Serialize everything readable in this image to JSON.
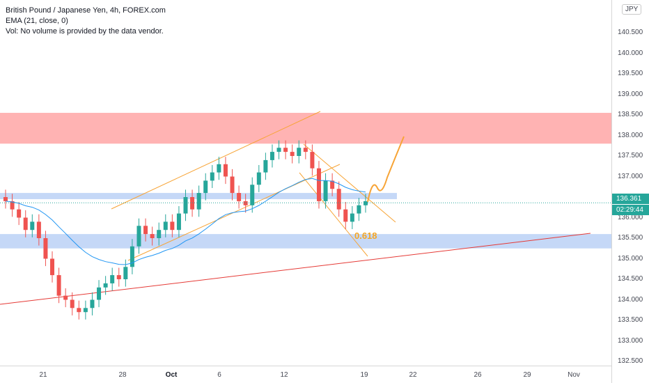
{
  "legend": {
    "title": "British Pound / Japanese Yen, 4h, FOREX.com",
    "ema": "EMA (21, close, 0)",
    "vol": "Vol: No volume is provided by the data vendor."
  },
  "currency_label": "JPY",
  "price_ticks": [
    "140.500",
    "140.000",
    "139.500",
    "139.000",
    "138.500",
    "138.000",
    "137.500",
    "137.000",
    "136.500",
    "136.000",
    "135.500",
    "135.000",
    "134.500",
    "134.000",
    "133.500",
    "133.000",
    "132.500"
  ],
  "price_tag": "136.361",
  "countdown_tag": "02:29:44",
  "time_ticks": [
    {
      "label": "21",
      "bold": false
    },
    {
      "label": "28",
      "bold": false
    },
    {
      "label": "Oct",
      "bold": true
    },
    {
      "label": "6",
      "bold": false
    },
    {
      "label": "12",
      "bold": false
    },
    {
      "label": "19",
      "bold": false
    },
    {
      "label": "22",
      "bold": false
    },
    {
      "label": "26",
      "bold": false
    },
    {
      "label": "29",
      "bold": false
    },
    {
      "label": "Nov",
      "bold": false
    }
  ],
  "fib_label": "0.618",
  "colors": {
    "up": "#26a69a",
    "down": "#ef5350",
    "ema": "#2196f3",
    "channel": "#f7a436",
    "resistance_zone": "#ffb3b3",
    "support_zone": "#c5d8f7",
    "trendline": "#e53935",
    "price_tag_bg": "#26a69a",
    "countdown_bg": "#26a69a"
  },
  "chart_data": {
    "type": "candlestick",
    "symbol": "GBPJPY",
    "timeframe": "4h",
    "ylim": [
      132.3,
      140.9
    ],
    "last_price": 136.361,
    "close_series": [
      136.4,
      136.2,
      136.0,
      135.7,
      135.9,
      135.5,
      135.0,
      134.6,
      134.1,
      134.0,
      133.8,
      133.7,
      133.8,
      134.0,
      134.3,
      134.4,
      134.6,
      134.5,
      134.8,
      135.3,
      135.8,
      135.6,
      135.5,
      135.7,
      135.9,
      135.7,
      136.1,
      136.5,
      136.2,
      136.6,
      136.9,
      137.1,
      137.3,
      137.0,
      136.6,
      136.4,
      136.3,
      136.8,
      137.1,
      137.4,
      137.6,
      137.7,
      137.6,
      137.5,
      137.7,
      137.6,
      137.2,
      136.4,
      136.9,
      136.7,
      136.2,
      135.9,
      136.1,
      136.3,
      136.4
    ],
    "annotations": {
      "resistance_zone": [
        137.8,
        138.55
      ],
      "support_zones": [
        [
          136.45,
          136.6
        ],
        [
          135.25,
          135.6
        ]
      ],
      "fib_level": "0.618",
      "projection": "up toward 138.0"
    }
  }
}
